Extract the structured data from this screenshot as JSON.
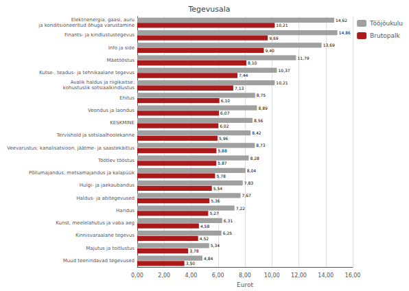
{
  "chart_data": {
    "type": "bar",
    "orientation": "horizontal",
    "title": "Tegevusala",
    "xlabel": "Eurot",
    "categories": [
      "Elektrienergia, gaasi, auru\nja konditsioneeritud õhuga varustamine",
      "Finants- ja kindlustustegevus",
      "Info ja side",
      "Mäetööstus",
      "Kutse-, teadus- ja tehnikaalane tegevus",
      "Avalik haldus ja riigikaitse;\nkohustuslik sotsiaalkindlustus",
      "Ehitus",
      "Veondus ja laondus",
      "KESKMINE",
      "Tervishold ja sotsiaalhoolekanne",
      "Veevarustus; kanalisatsioon, jäätme- ja saastekäitlus",
      "Töötlev tööstus",
      "Põllumajandus, metsamajandus ja kalapüük",
      "Hulgi- ja jaekaubandus",
      "Haldus- ja abitegevused",
      "Haridus",
      "Kunst, meelelahutus ja vaba aeg",
      "Kinnisvaraalane tegevus",
      "Majutus ja toitlustus",
      "Muud teenindavad tegevused"
    ],
    "series": [
      {
        "name": "Tööjõukulu",
        "color": "#a0a0a0",
        "values": [
          14.62,
          14.86,
          13.69,
          11.79,
          10.37,
          10.21,
          8.75,
          8.89,
          8.56,
          8.42,
          8.73,
          8.28,
          8.04,
          7.83,
          7.67,
          7.22,
          6.31,
          6.25,
          5.34,
          4.84
        ],
        "value_labels": [
          "14,62",
          "14,86",
          "13,69",
          "11,79",
          "10,37",
          "10,21",
          "8,75",
          "8,89",
          "8,56",
          "8,42",
          "8,73",
          "8,28",
          "8,04",
          "7,83",
          "7,67",
          "7,22",
          "6,31",
          "6,25",
          "5,34",
          "4,84"
        ]
      },
      {
        "name": "Brutopalk",
        "color": "#aa1a1a",
        "values": [
          10.21,
          9.69,
          9.4,
          8.1,
          7.44,
          7.13,
          6.1,
          6.07,
          6.02,
          5.96,
          5.88,
          5.87,
          5.78,
          5.54,
          5.36,
          5.27,
          4.58,
          4.52,
          3.78,
          3.5
        ],
        "value_labels": [
          "10,21",
          "9,69",
          "9,40",
          "8,10",
          "7,44",
          "7,13",
          "6,10",
          "6,07",
          "6,02",
          "5,96",
          "5,88",
          "5,87",
          "5,78",
          "5,54",
          "5,36",
          "5,27",
          "4,58",
          "4,52",
          "3,78",
          "3,50"
        ]
      }
    ],
    "xlim": [
      0,
      16
    ],
    "xticks": [
      {
        "value": 0,
        "label": "0,00"
      },
      {
        "value": 2,
        "label": "2,00"
      },
      {
        "value": 4,
        "label": "4,00"
      },
      {
        "value": 6,
        "label": "6,00"
      },
      {
        "value": 8,
        "label": "8,00"
      },
      {
        "value": 10,
        "label": "10,00"
      },
      {
        "value": 12,
        "label": "12,00"
      },
      {
        "value": 14,
        "label": "14,00"
      },
      {
        "value": 16,
        "label": "16,00"
      }
    ],
    "grid": true,
    "legend": "right",
    "data_labels": true
  }
}
